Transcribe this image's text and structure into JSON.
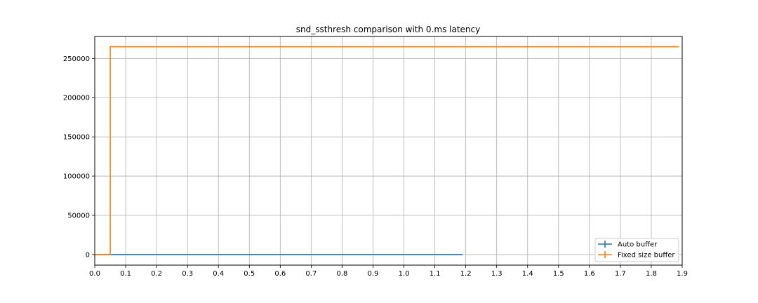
{
  "chart_data": {
    "type": "line",
    "title": "snd_ssthresh comparison with 0.ms latency",
    "xlabel": "",
    "ylabel": "",
    "xlim": [
      0.0,
      1.9
    ],
    "ylim": [
      -13500,
      278000
    ],
    "grid": true,
    "legend_position": "bottom-right",
    "x_ticks": [
      0.0,
      0.1,
      0.2,
      0.3,
      0.4,
      0.5,
      0.6,
      0.7,
      0.8,
      0.9,
      1.0,
      1.1,
      1.2,
      1.3,
      1.4,
      1.5,
      1.6,
      1.7,
      1.8,
      1.9
    ],
    "x_tick_labels": [
      "0.0",
      "0.1",
      "0.2",
      "0.3",
      "0.4",
      "0.5",
      "0.6",
      "0.7",
      "0.8",
      "0.9",
      "1.0",
      "1.1",
      "1.2",
      "1.3",
      "1.4",
      "1.5",
      "1.6",
      "1.7",
      "1.8",
      "1.9"
    ],
    "y_ticks": [
      0,
      50000,
      100000,
      150000,
      200000,
      250000
    ],
    "y_tick_labels": [
      "0",
      "50000",
      "100000",
      "150000",
      "200000",
      "250000"
    ],
    "series": [
      {
        "name": "Auto buffer",
        "color": "#1f77b4",
        "x": [
          0.0,
          1.19
        ],
        "y": [
          0,
          0
        ]
      },
      {
        "name": "Fixed size buffer",
        "color": "#ff7f0e",
        "x": [
          0.0,
          0.05,
          0.05,
          1.89
        ],
        "y": [
          0,
          0,
          265000,
          265000
        ]
      }
    ]
  }
}
